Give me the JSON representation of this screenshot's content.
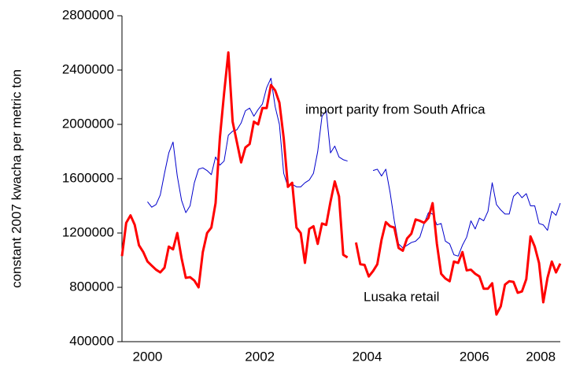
{
  "chart_data": {
    "type": "line",
    "y_label": "constant 2007 kwacha per metric ton",
    "x": [
      2000,
      2000.083,
      2000.167,
      2000.25,
      2000.333,
      2000.417,
      2000.5,
      2000.583,
      2000.667,
      2000.75,
      2000.833,
      2000.917,
      2001,
      2001.083,
      2001.167,
      2001.25,
      2001.333,
      2001.417,
      2001.5,
      2001.583,
      2001.667,
      2001.75,
      2001.833,
      2001.917,
      2002,
      2002.083,
      2002.167,
      2002.25,
      2002.333,
      2002.417,
      2002.5,
      2002.583,
      2002.667,
      2002.75,
      2002.833,
      2002.917,
      2003,
      2003.083,
      2003.167,
      2003.25,
      2003.333,
      2003.417,
      2003.5,
      2003.583,
      2003.667,
      2003.75,
      2003.833,
      2003.917,
      2004,
      2004.083,
      2004.167,
      2004.25,
      2004.333,
      2004.417,
      2004.5,
      2004.583,
      2004.667,
      2004.75,
      2004.833,
      2004.917,
      2005,
      2005.083,
      2005.167,
      2005.25,
      2005.333,
      2005.417,
      2005.5,
      2005.583,
      2005.667,
      2005.75,
      2005.833,
      2005.917,
      2006,
      2006.083,
      2006.167,
      2006.25,
      2006.333,
      2006.417,
      2006.5,
      2006.583,
      2006.667,
      2006.75,
      2006.833,
      2006.917,
      2007,
      2007.083,
      2007.167,
      2007.25,
      2007.333,
      2007.417,
      2007.5,
      2007.583,
      2007.667,
      2007.75,
      2007.833,
      2007.917,
      2008,
      2008.083,
      2008.167,
      2008.25,
      2008.333,
      2008.417,
      2008.5,
      2008.583
    ],
    "series": [
      {
        "name": "import parity from South Africa",
        "color": "#0000cc",
        "width": 1,
        "values": [
          null,
          null,
          null,
          null,
          null,
          null,
          1430000,
          1390000,
          1410000,
          1480000,
          1640000,
          1790000,
          1870000,
          1620000,
          1440000,
          1350000,
          1400000,
          1570000,
          1670000,
          1680000,
          1660000,
          1630000,
          1760000,
          1700000,
          1730000,
          1920000,
          1950000,
          1960000,
          2010000,
          2100000,
          2120000,
          2060000,
          2110000,
          2150000,
          2270000,
          2340000,
          2130000,
          2000000,
          1640000,
          1540000,
          1560000,
          1540000,
          1540000,
          1570000,
          1590000,
          1640000,
          1800000,
          2060000,
          2100000,
          1790000,
          1840000,
          1760000,
          1740000,
          1730000,
          null,
          null,
          null,
          null,
          null,
          1660000,
          1670000,
          1620000,
          1670000,
          1500000,
          1290000,
          1120000,
          1090000,
          1110000,
          1130000,
          1140000,
          1170000,
          1270000,
          1350000,
          1340000,
          1260000,
          1270000,
          1140000,
          1120000,
          1040000,
          1030000,
          1110000,
          1170000,
          1290000,
          1230000,
          1310000,
          1290000,
          1360000,
          1570000,
          1410000,
          1370000,
          1340000,
          1340000,
          1470000,
          1500000,
          1460000,
          1490000,
          1400000,
          1400000,
          1270000,
          1260000,
          1220000,
          1360000,
          1330000,
          1420000
        ]
      },
      {
        "name": "Lusaka retail",
        "color": "#ff0000",
        "width": 3,
        "values": [
          1030000,
          1275000,
          1330000,
          1260000,
          1110000,
          1060000,
          990000,
          960000,
          930000,
          910000,
          945000,
          1100000,
          1080000,
          1200000,
          1015000,
          870000,
          875000,
          850000,
          800000,
          1060000,
          1200000,
          1240000,
          1420000,
          1900000,
          2230000,
          2530000,
          2020000,
          1870000,
          1720000,
          1830000,
          1855000,
          2020000,
          2000000,
          2120000,
          2120000,
          2290000,
          2250000,
          2160000,
          1900000,
          1540000,
          1570000,
          1240000,
          1200000,
          980000,
          1230000,
          1250000,
          1120000,
          1270000,
          1260000,
          1430000,
          1580000,
          1470000,
          1040000,
          1020000,
          null,
          1130000,
          970000,
          965000,
          880000,
          920000,
          970000,
          1150000,
          1280000,
          1250000,
          1240000,
          1090000,
          1070000,
          1160000,
          1195000,
          1300000,
          1290000,
          1275000,
          1310000,
          1420000,
          1120000,
          900000,
          865000,
          845000,
          990000,
          980000,
          1060000,
          925000,
          930000,
          900000,
          880000,
          790000,
          790000,
          830000,
          600000,
          660000,
          820000,
          845000,
          840000,
          760000,
          770000,
          860000,
          1175000,
          1100000,
          980000,
          690000,
          870000,
          990000,
          910000,
          975000
        ]
      }
    ],
    "xlim": [
      2000,
      2008.583
    ],
    "xticks": [
      {
        "value": 2000.5,
        "label": "2000"
      },
      {
        "value": 2002.7,
        "label": "2002"
      },
      {
        "value": 2004.8,
        "label": "2004"
      },
      {
        "value": 2006.9,
        "label": "2006"
      },
      {
        "value": 2008.2,
        "label": "2008"
      }
    ],
    "ylim": [
      400000,
      2800000
    ],
    "yticks": [
      400000,
      800000,
      1200000,
      1600000,
      2000000,
      2400000,
      2800000
    ],
    "grid": false
  }
}
